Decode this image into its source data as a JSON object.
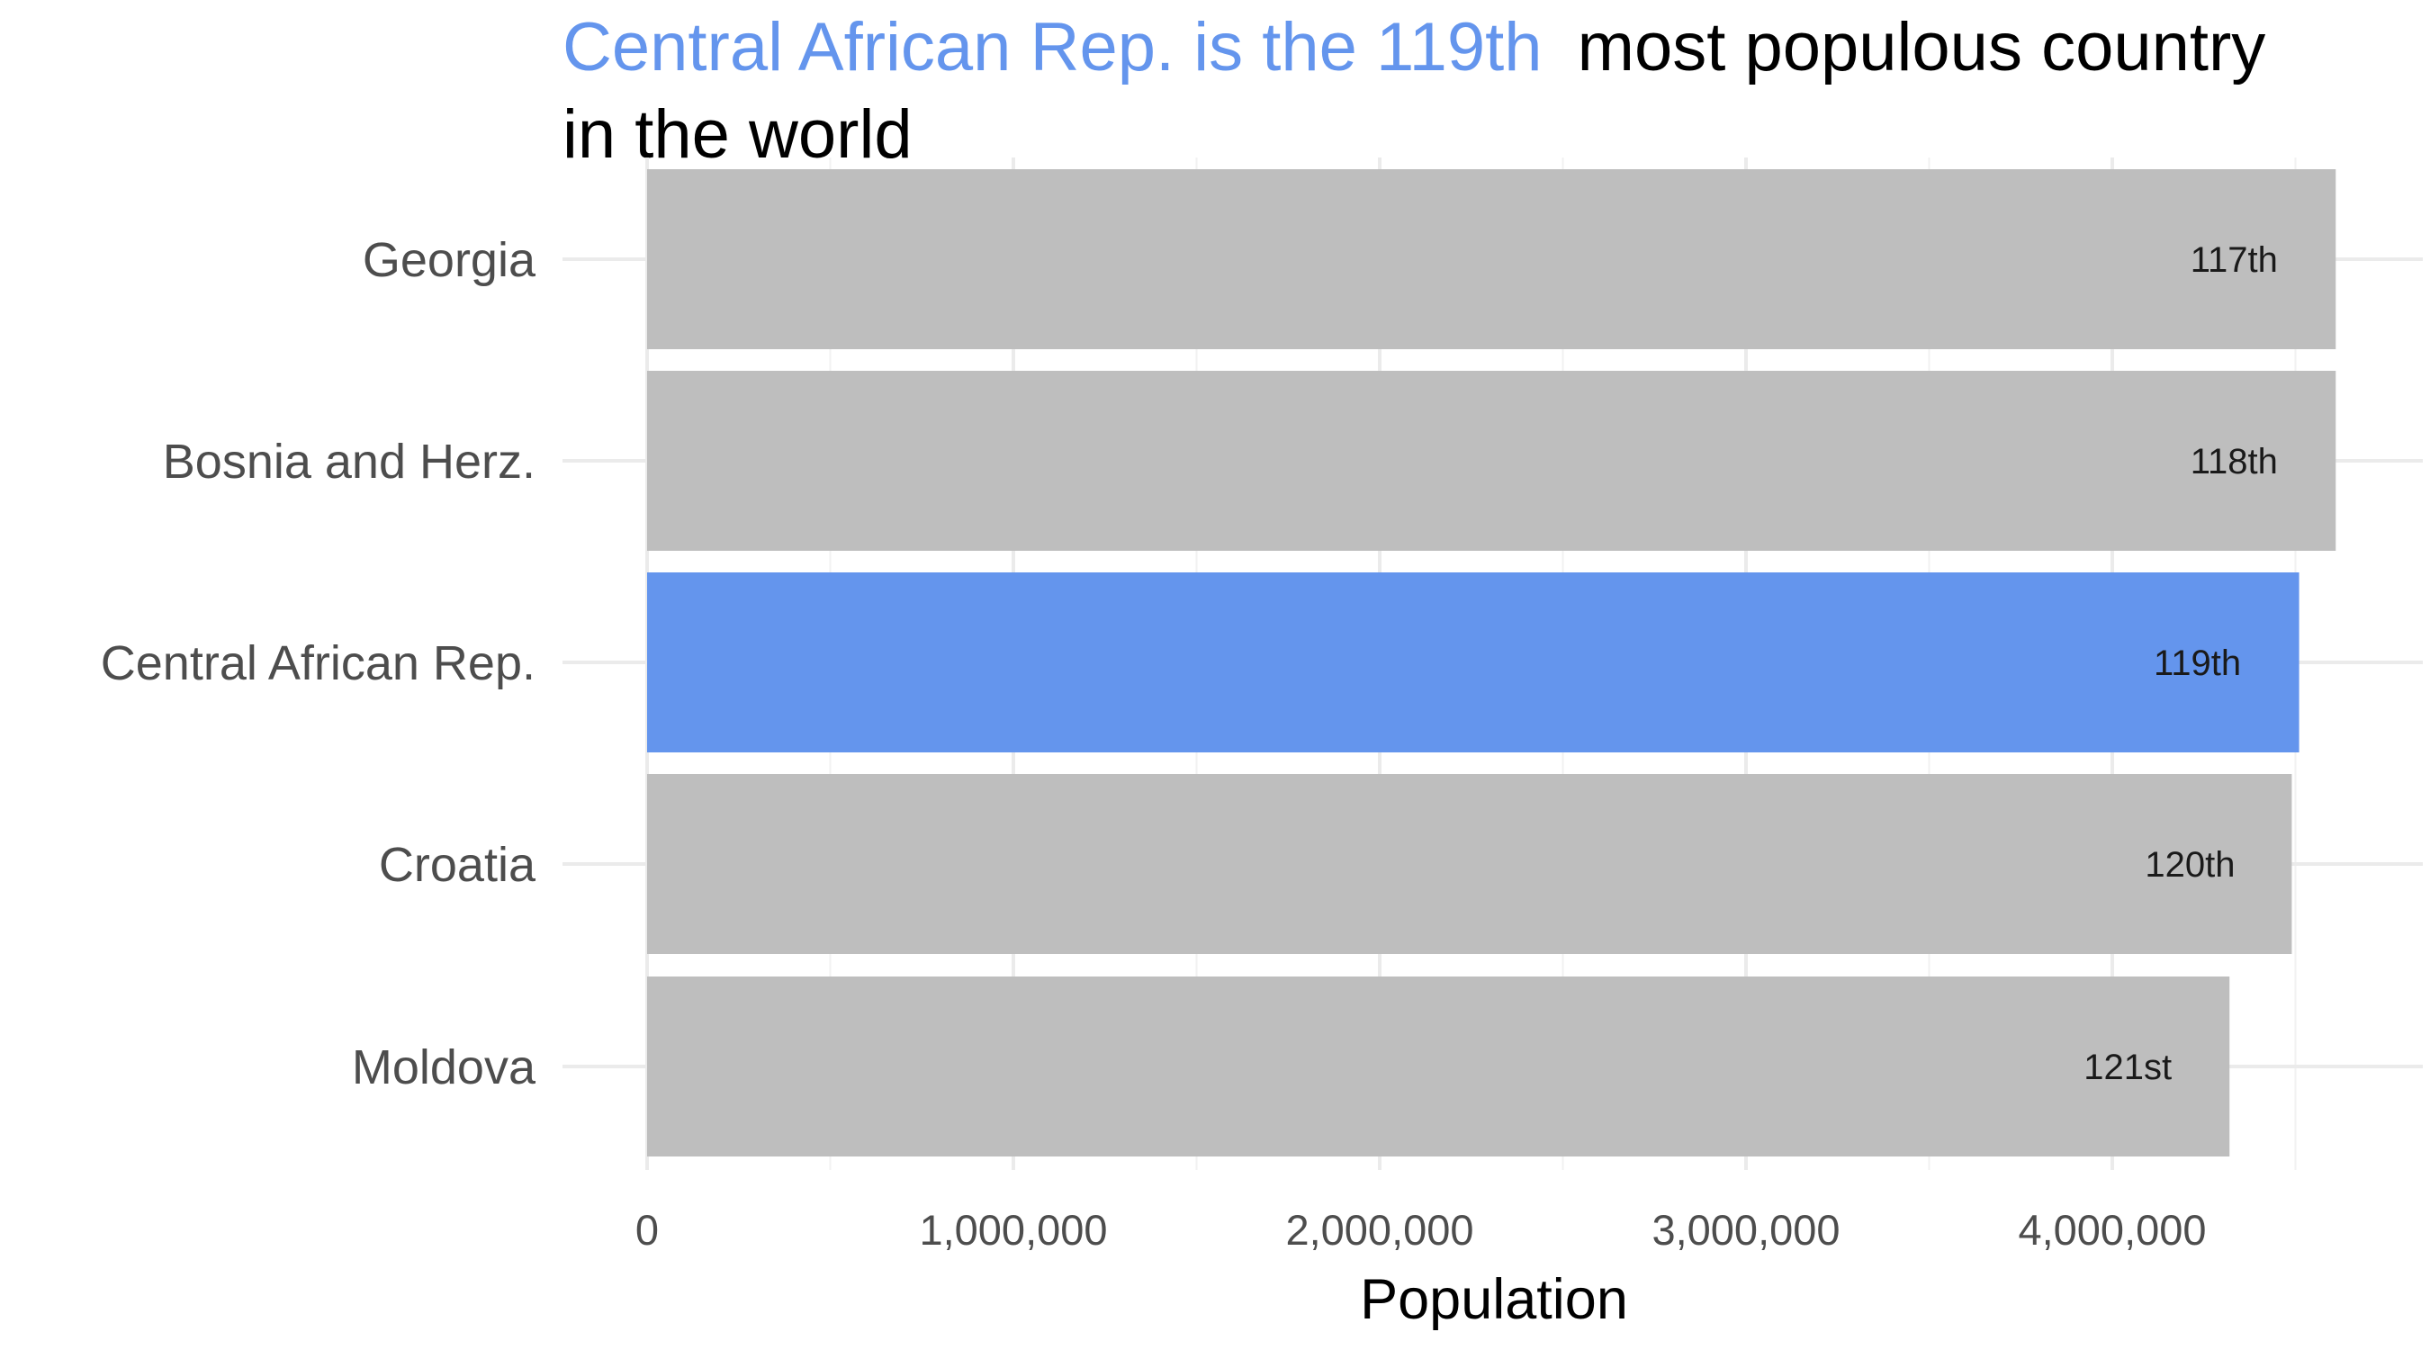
{
  "chart_data": {
    "type": "bar",
    "orientation": "horizontal",
    "title_highlight": "Central African Rep. is the 119th",
    "title_rest_line1": "most populous country",
    "title_line2": "in the world",
    "xlabel": "Population",
    "ylabel": "",
    "xlim": [
      0,
      4700000
    ],
    "x_ticks": [
      0,
      1000000,
      2000000,
      3000000,
      4000000
    ],
    "x_tick_labels": [
      "0",
      "1,000,000",
      "2,000,000",
      "3,000,000",
      "4,000,000"
    ],
    "categories": [
      "Georgia",
      "Bosnia and Herz.",
      "Central African Rep.",
      "Croatia",
      "Moldova"
    ],
    "values": [
      4610000,
      4610000,
      4510000,
      4490000,
      4320000
    ],
    "labels": [
      "117th",
      "118th",
      "119th",
      "120th",
      "121st"
    ],
    "highlight_index": 2,
    "colors": {
      "highlight": "#6495ED",
      "default": "#BEBEBE"
    },
    "grid": true,
    "legend": "none"
  }
}
